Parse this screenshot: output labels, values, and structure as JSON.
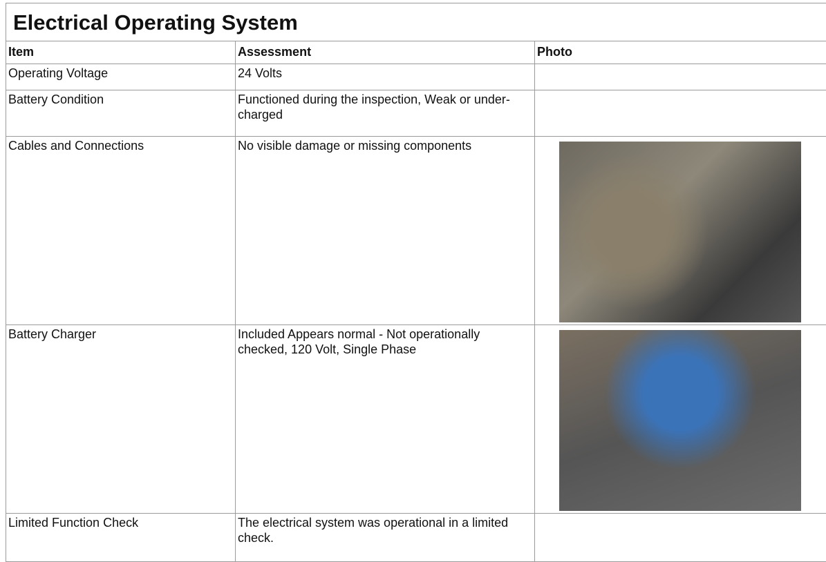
{
  "header": {
    "title": "Electrical Operating System"
  },
  "table": {
    "columns": [
      "Item",
      "Assessment",
      "Photo"
    ],
    "rows": [
      [
        "Operating Voltage",
        "24 Volts"
      ],
      [
        "Battery Condition",
        "Functioned during the inspection, Weak or under-charged"
      ],
      [
        "Cables and Connections",
        "No visible damage or missing components"
      ],
      [
        "Battery Charger",
        "Included Appears normal - Not operationally checked, 120 Volt, Single Phase"
      ],
      [
        "Limited Function Check",
        "The electrical system was operational in a limited check."
      ]
    ]
  }
}
